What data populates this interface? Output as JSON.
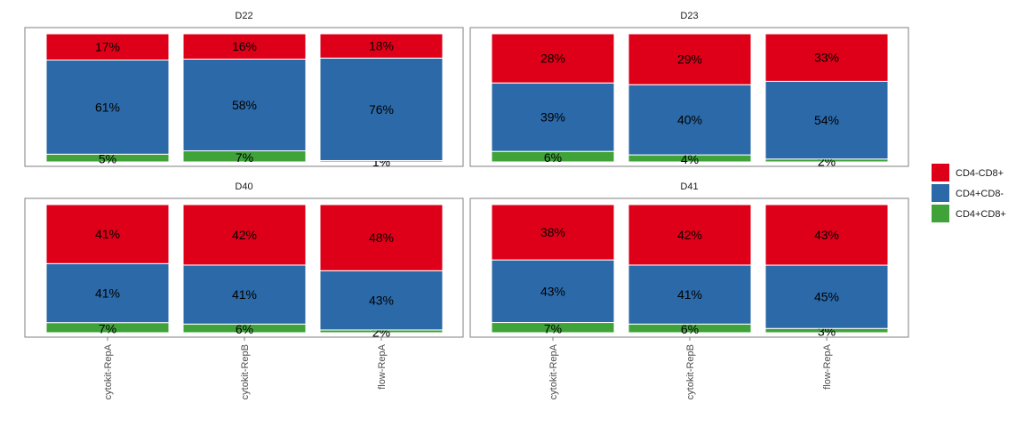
{
  "chart_data": {
    "type": "bar",
    "stacked": true,
    "normalized_percent": true,
    "categories": [
      "cytokit-RepA",
      "cytokit-RepB",
      "flow-RepA"
    ],
    "series_order": [
      "CD4-CD8+",
      "CD4+CD8-",
      "CD4+CD8+"
    ],
    "colors": {
      "CD4-CD8+": "#de0019",
      "CD4+CD8-": "#2c69a8",
      "CD4+CD8+": "#3fa33a"
    },
    "legend": {
      "placement": "right",
      "entries": [
        {
          "name": "CD4-CD8+",
          "color": "#de0019"
        },
        {
          "name": "CD4+CD8-",
          "color": "#2c69a8"
        },
        {
          "name": "CD4+CD8+",
          "color": "#3fa33a"
        }
      ]
    },
    "panels": [
      {
        "title": "D22",
        "bars": [
          {
            "category": "cytokit-RepA",
            "segments": [
              {
                "series": "CD4-CD8+",
                "value": 17,
                "label": "17%"
              },
              {
                "series": "CD4+CD8-",
                "value": 61,
                "label": "61%"
              },
              {
                "series": "CD4+CD8+",
                "value": 5,
                "label": "5%"
              }
            ]
          },
          {
            "category": "cytokit-RepB",
            "segments": [
              {
                "series": "CD4-CD8+",
                "value": 16,
                "label": "16%"
              },
              {
                "series": "CD4+CD8-",
                "value": 58,
                "label": "58%"
              },
              {
                "series": "CD4+CD8+",
                "value": 7,
                "label": "7%"
              }
            ]
          },
          {
            "category": "flow-RepA",
            "segments": [
              {
                "series": "CD4-CD8+",
                "value": 18,
                "label": "18%"
              },
              {
                "series": "CD4+CD8-",
                "value": 76,
                "label": "76%"
              },
              {
                "series": "CD4+CD8+",
                "value": 1,
                "label": "1%"
              }
            ]
          }
        ]
      },
      {
        "title": "D23",
        "bars": [
          {
            "category": "cytokit-RepA",
            "segments": [
              {
                "series": "CD4-CD8+",
                "value": 28,
                "label": "28%"
              },
              {
                "series": "CD4+CD8-",
                "value": 39,
                "label": "39%"
              },
              {
                "series": "CD4+CD8+",
                "value": 6,
                "label": "6%"
              }
            ]
          },
          {
            "category": "cytokit-RepB",
            "segments": [
              {
                "series": "CD4-CD8+",
                "value": 29,
                "label": "29%"
              },
              {
                "series": "CD4+CD8-",
                "value": 40,
                "label": "40%"
              },
              {
                "series": "CD4+CD8+",
                "value": 4,
                "label": "4%"
              }
            ]
          },
          {
            "category": "flow-RepA",
            "segments": [
              {
                "series": "CD4-CD8+",
                "value": 33,
                "label": "33%"
              },
              {
                "series": "CD4+CD8-",
                "value": 54,
                "label": "54%"
              },
              {
                "series": "CD4+CD8+",
                "value": 2,
                "label": "2%"
              }
            ]
          }
        ]
      },
      {
        "title": "D40",
        "bars": [
          {
            "category": "cytokit-RepA",
            "segments": [
              {
                "series": "CD4-CD8+",
                "value": 41,
                "label": "41%"
              },
              {
                "series": "CD4+CD8-",
                "value": 41,
                "label": "41%"
              },
              {
                "series": "CD4+CD8+",
                "value": 7,
                "label": "7%"
              }
            ]
          },
          {
            "category": "cytokit-RepB",
            "segments": [
              {
                "series": "CD4-CD8+",
                "value": 42,
                "label": "42%"
              },
              {
                "series": "CD4+CD8-",
                "value": 41,
                "label": "41%"
              },
              {
                "series": "CD4+CD8+",
                "value": 6,
                "label": "6%"
              }
            ]
          },
          {
            "category": "flow-RepA",
            "segments": [
              {
                "series": "CD4-CD8+",
                "value": 48,
                "label": "48%"
              },
              {
                "series": "CD4+CD8-",
                "value": 43,
                "label": "43%"
              },
              {
                "series": "CD4+CD8+",
                "value": 2,
                "label": "2%"
              }
            ]
          }
        ]
      },
      {
        "title": "D41",
        "bars": [
          {
            "category": "cytokit-RepA",
            "segments": [
              {
                "series": "CD4-CD8+",
                "value": 38,
                "label": "38%"
              },
              {
                "series": "CD4+CD8-",
                "value": 43,
                "label": "43%"
              },
              {
                "series": "CD4+CD8+",
                "value": 7,
                "label": "7%"
              }
            ]
          },
          {
            "category": "cytokit-RepB",
            "segments": [
              {
                "series": "CD4-CD8+",
                "value": 42,
                "label": "42%"
              },
              {
                "series": "CD4+CD8-",
                "value": 41,
                "label": "41%"
              },
              {
                "series": "CD4+CD8+",
                "value": 6,
                "label": "6%"
              }
            ]
          },
          {
            "category": "flow-RepA",
            "segments": [
              {
                "series": "CD4-CD8+",
                "value": 43,
                "label": "43%"
              },
              {
                "series": "CD4+CD8-",
                "value": 45,
                "label": "45%"
              },
              {
                "series": "CD4+CD8+",
                "value": 3,
                "label": "3%"
              }
            ]
          }
        ]
      }
    ]
  }
}
